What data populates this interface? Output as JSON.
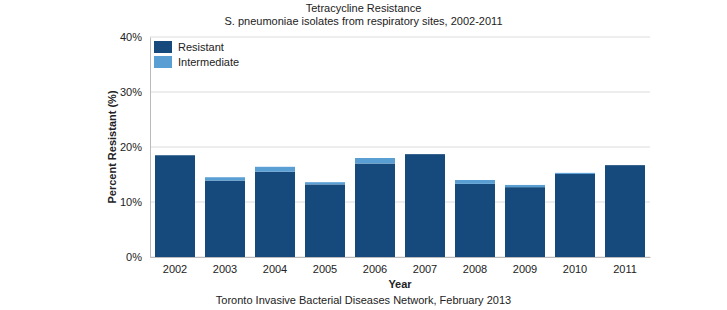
{
  "chart_data": {
    "type": "bar",
    "title": "Tetracycline Resistance",
    "subtitle": "S. pneumoniae isolates from respiratory sites, 2002-2011",
    "x_label": "Year",
    "y_label": "Percent Resistant (%)",
    "source": "Toronto Invasive Bacterial Diseases Network, February 2013",
    "categories": [
      "2002",
      "2003",
      "2004",
      "2005",
      "2006",
      "2007",
      "2008",
      "2009",
      "2010",
      "2011"
    ],
    "series": [
      {
        "name": "Resistant",
        "color": "#174a7c",
        "values": [
          18.5,
          13.9,
          15.5,
          13.2,
          17.0,
          18.7,
          13.3,
          12.7,
          15.1,
          16.7
        ]
      },
      {
        "name": "Intermediate",
        "color": "#5a9fd4",
        "values": [
          0,
          0.6,
          0.9,
          0.4,
          1.0,
          0,
          0.7,
          0.4,
          0.2,
          0
        ]
      }
    ],
    "stacked": true,
    "ylim": [
      0,
      40
    ],
    "yticks": [
      {
        "value": 0,
        "label": "0%"
      },
      {
        "value": 10,
        "label": "10%"
      },
      {
        "value": 20,
        "label": "20%"
      },
      {
        "value": 30,
        "label": "30%"
      },
      {
        "value": 40,
        "label": "40%"
      }
    ],
    "grid": true,
    "legend": "top-left"
  }
}
